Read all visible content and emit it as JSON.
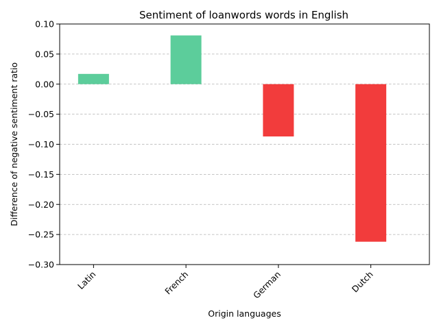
{
  "chart_data": {
    "type": "bar",
    "title": "Sentiment of loanwords words in English",
    "xlabel": "Origin languages",
    "ylabel": "Difference of negative sentiment ratio",
    "categories": [
      "Latin",
      "French",
      "German",
      "Dutch"
    ],
    "values": [
      0.017,
      0.081,
      -0.087,
      -0.262
    ],
    "ylim": [
      -0.3,
      0.1
    ],
    "yticks": [
      0.1,
      0.05,
      0.0,
      -0.05,
      -0.1,
      -0.15,
      -0.2,
      -0.25,
      -0.3
    ],
    "ytick_labels": [
      "0.10",
      "0.05",
      "0.00",
      "−0.05",
      "−0.10",
      "−0.15",
      "−0.20",
      "−0.25",
      "−0.30"
    ],
    "grid": "y-dashed",
    "colors": {
      "positive": "#5ccd9b",
      "negative": "#f23c3c",
      "grid": "#b0b0b0",
      "axis": "#000000"
    }
  }
}
